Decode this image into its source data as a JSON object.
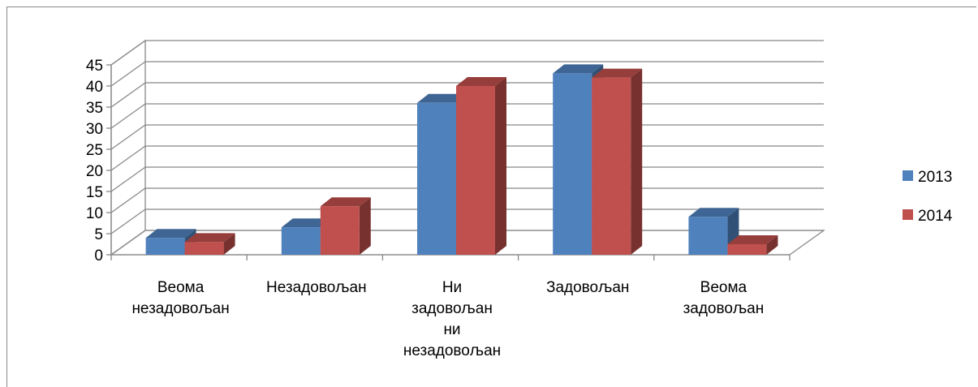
{
  "chart_data": {
    "type": "bar",
    "categories": [
      [
        "Веома",
        "незадовољан"
      ],
      [
        "Незадовољан"
      ],
      [
        "Ни",
        "задовољан",
        "ни",
        "незадовољан"
      ],
      [
        "Задовољан"
      ],
      [
        "Веома",
        "задовољан"
      ]
    ],
    "series": [
      {
        "name": "2013",
        "values": [
          4,
          6.5,
          36,
          43,
          9
        ],
        "color": "#4f81bd"
      },
      {
        "name": "2014",
        "values": [
          3,
          11.5,
          40,
          42,
          2.5
        ],
        "color": "#c0504d"
      }
    ],
    "ylim": [
      0,
      45
    ],
    "yticks": [
      0,
      5,
      10,
      15,
      20,
      25,
      30,
      35,
      40,
      45
    ],
    "grid": true,
    "legend_position": "right",
    "style": "3d-clustered-column"
  }
}
